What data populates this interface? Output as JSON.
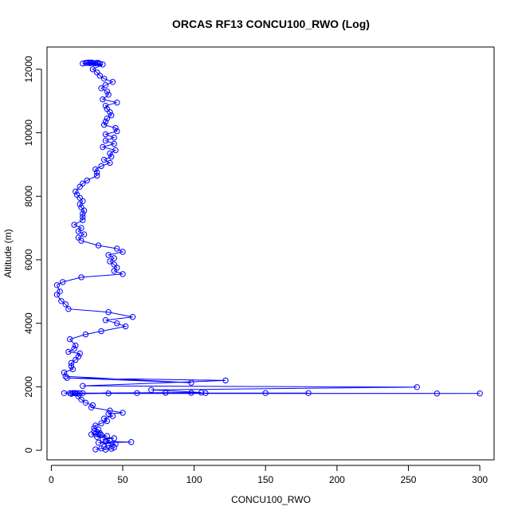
{
  "chart_data": {
    "type": "line",
    "title": "ORCAS RF13 CONCU100_RWO (Log)",
    "xlabel": "CONCU100_RWO",
    "ylabel": "Altitude (m)",
    "xlim": [
      -3,
      310
    ],
    "ylim": [
      -300,
      12700
    ],
    "xticks": [
      0,
      50,
      100,
      150,
      200,
      250,
      300
    ],
    "yticks": [
      0,
      2000,
      4000,
      6000,
      8000,
      10000,
      12000
    ],
    "colors": {
      "series": "#0000ff"
    },
    "series": [
      {
        "points": [
          [
            31,
            30
          ],
          [
            35,
            60
          ],
          [
            38,
            20
          ],
          [
            42,
            50
          ],
          [
            44,
            90
          ],
          [
            40,
            150
          ],
          [
            37,
            120
          ],
          [
            45,
            200
          ],
          [
            33,
            240
          ],
          [
            56,
            260
          ],
          [
            38,
            280
          ],
          [
            41,
            320
          ],
          [
            36,
            350
          ],
          [
            44,
            380
          ],
          [
            32,
            420
          ],
          [
            39,
            450
          ],
          [
            35,
            480
          ],
          [
            28,
            500
          ],
          [
            31,
            510
          ],
          [
            33,
            520
          ],
          [
            34,
            540
          ],
          [
            30,
            600
          ],
          [
            33,
            650
          ],
          [
            30,
            700
          ],
          [
            31,
            780
          ],
          [
            35,
            850
          ],
          [
            39,
            920
          ],
          [
            37,
            1000
          ],
          [
            43,
            1080
          ],
          [
            40,
            1150
          ],
          [
            50,
            1180
          ],
          [
            41,
            1250
          ],
          [
            28,
            1350
          ],
          [
            29,
            1420
          ],
          [
            24,
            1500
          ],
          [
            21,
            1600
          ],
          [
            19,
            1700
          ],
          [
            14,
            1780
          ],
          [
            40,
            1790
          ],
          [
            300,
            1790
          ],
          [
            16,
            1800
          ],
          [
            270,
            1790
          ],
          [
            18,
            1795
          ],
          [
            180,
            1800
          ],
          [
            15,
            1800
          ],
          [
            150,
            1800
          ],
          [
            17,
            1800
          ],
          [
            108,
            1800
          ],
          [
            9,
            1800
          ],
          [
            98,
            1810
          ],
          [
            20,
            1800
          ],
          [
            80,
            1810
          ],
          [
            13,
            1800
          ],
          [
            60,
            1800
          ],
          [
            22,
            1800
          ],
          [
            105,
            1820
          ],
          [
            70,
            1900
          ],
          [
            256,
            1990
          ],
          [
            22,
            2030
          ],
          [
            122,
            2200
          ],
          [
            11,
            2280
          ],
          [
            98,
            2130
          ],
          [
            10,
            2330
          ],
          [
            9,
            2450
          ],
          [
            15,
            2550
          ],
          [
            14,
            2650
          ],
          [
            14,
            2750
          ],
          [
            17,
            2850
          ],
          [
            19,
            2950
          ],
          [
            20,
            3050
          ],
          [
            12,
            3100
          ],
          [
            16,
            3200
          ],
          [
            17,
            3300
          ],
          [
            13,
            3500
          ],
          [
            24,
            3650
          ],
          [
            35,
            3750
          ],
          [
            52,
            3900
          ],
          [
            46,
            4000
          ],
          [
            38,
            4100
          ],
          [
            57,
            4200
          ],
          [
            40,
            4350
          ],
          [
            12,
            4450
          ],
          [
            10,
            4600
          ],
          [
            7,
            4700
          ],
          [
            4,
            4900
          ],
          [
            6,
            5000
          ],
          [
            4,
            5200
          ],
          [
            8,
            5300
          ],
          [
            21,
            5450
          ],
          [
            50,
            5550
          ],
          [
            44,
            5650
          ],
          [
            46,
            5750
          ],
          [
            44,
            5850
          ],
          [
            41,
            5950
          ],
          [
            44,
            6050
          ],
          [
            40,
            6150
          ],
          [
            50,
            6250
          ],
          [
            46,
            6350
          ],
          [
            33,
            6450
          ],
          [
            21,
            6600
          ],
          [
            19,
            6700
          ],
          [
            23,
            6800
          ],
          [
            19,
            6900
          ],
          [
            21,
            7000
          ],
          [
            16,
            7100
          ],
          [
            22,
            7250
          ],
          [
            22,
            7350
          ],
          [
            22,
            7450
          ],
          [
            23,
            7550
          ],
          [
            21,
            7650
          ],
          [
            20,
            7750
          ],
          [
            22,
            7850
          ],
          [
            20,
            7950
          ],
          [
            18,
            8050
          ],
          [
            17,
            8150
          ],
          [
            20,
            8300
          ],
          [
            22,
            8400
          ],
          [
            25,
            8500
          ],
          [
            32,
            8650
          ],
          [
            32,
            8750
          ],
          [
            31,
            8850
          ],
          [
            35,
            8950
          ],
          [
            41,
            9050
          ],
          [
            37,
            9150
          ],
          [
            42,
            9250
          ],
          [
            41,
            9350
          ],
          [
            45,
            9450
          ],
          [
            36,
            9550
          ],
          [
            44,
            9650
          ],
          [
            38,
            9750
          ],
          [
            44,
            9850
          ],
          [
            38,
            9950
          ],
          [
            46,
            10050
          ],
          [
            45,
            10150
          ],
          [
            37,
            10250
          ],
          [
            38,
            10350
          ],
          [
            39,
            10450
          ],
          [
            42,
            10550
          ],
          [
            41,
            10650
          ],
          [
            39,
            10750
          ],
          [
            38,
            10850
          ],
          [
            46,
            10950
          ],
          [
            36,
            11050
          ],
          [
            40,
            11200
          ],
          [
            39,
            11300
          ],
          [
            35,
            11400
          ],
          [
            38,
            11500
          ],
          [
            43,
            11600
          ],
          [
            37,
            11700
          ],
          [
            34,
            11800
          ],
          [
            32,
            11900
          ],
          [
            29,
            12000
          ],
          [
            36,
            12150
          ],
          [
            22,
            12180
          ],
          [
            34,
            12170
          ],
          [
            24,
            12200
          ],
          [
            31,
            12190
          ],
          [
            26,
            12210
          ],
          [
            29,
            12200
          ],
          [
            27,
            12190
          ],
          [
            33,
            12200
          ],
          [
            28,
            12210
          ],
          [
            30,
            12190
          ],
          [
            25,
            12200
          ],
          [
            32,
            12200
          ]
        ]
      }
    ],
    "grid": false,
    "marker": "open-circle"
  }
}
